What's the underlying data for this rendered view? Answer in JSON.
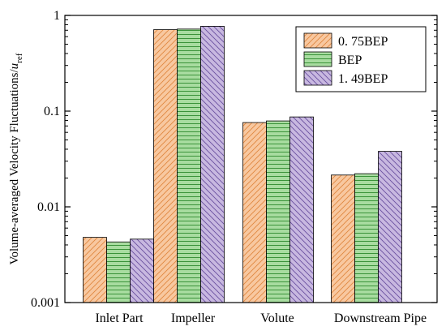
{
  "chart_data": {
    "type": "bar",
    "yscale": "log",
    "ylim": [
      0.001,
      1
    ],
    "ylabel": "Volume-averaged Velocity Fluctuations/",
    "ylabel_symbol": "u",
    "ylabel_subscript": "ref",
    "xlabel": "",
    "yticks": [
      {
        "value": 1,
        "label": "1"
      },
      {
        "value": 0.1,
        "label": "0.1"
      },
      {
        "value": 0.01,
        "label": "0.01"
      },
      {
        "value": 0.001,
        "label": "0.001"
      }
    ],
    "categories": [
      "Inlet Part",
      "Impeller",
      "Volute",
      "Downstream Pipe"
    ],
    "series": [
      {
        "name": "0. 75BEP",
        "color": "#f8c8a0",
        "stroke": "#e08840",
        "pattern": "diagonal-right",
        "values": [
          0.0048,
          0.71,
          0.076,
          0.0215
        ]
      },
      {
        "name": "BEP",
        "color": "#a8dca0",
        "stroke": "#2e8b2e",
        "pattern": "horizontal",
        "values": [
          0.0043,
          0.72,
          0.079,
          0.0222
        ]
      },
      {
        "name": "1. 49BEP",
        "color": "#c8b8e0",
        "stroke": "#6a50a0",
        "pattern": "diagonal-left",
        "values": [
          0.0046,
          0.77,
          0.087,
          0.038
        ]
      }
    ],
    "legend_position": "top-right",
    "grid": false
  }
}
